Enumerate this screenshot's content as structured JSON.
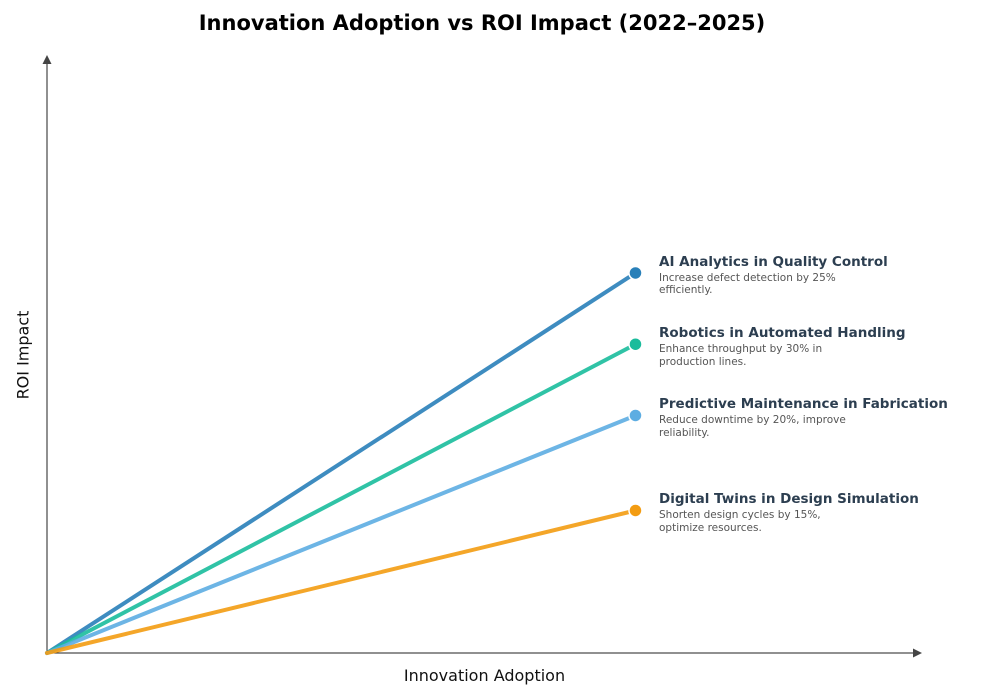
{
  "chart_data": {
    "type": "line",
    "title": "Innovation Adoption vs ROI Impact (2022–2025)",
    "xlabel": "Innovation Adoption",
    "ylabel": "ROI Impact",
    "xlim": [
      0,
      10.2
    ],
    "ylim": [
      0,
      10
    ],
    "grid": false,
    "ticks": false,
    "series": [
      {
        "name": "AI Analytics in Quality Control",
        "description": "Increase defect detection by 25% efficiently.",
        "color": "#2980b9",
        "points": [
          [
            0,
            0
          ],
          [
            7,
            8
          ]
        ]
      },
      {
        "name": "Robotics in Automated Handling",
        "description": "Enhance throughput by 30% in production lines.",
        "color": "#1abc9c",
        "points": [
          [
            0,
            0
          ],
          [
            7,
            6.5
          ]
        ]
      },
      {
        "name": "Predictive Maintenance in Fabrication",
        "description": "Reduce downtime by 20%, improve reliability.",
        "color": "#5dade2",
        "points": [
          [
            0,
            0
          ],
          [
            7,
            5
          ]
        ]
      },
      {
        "name": "Digital Twins in Design Simulation",
        "description": "Shorten design cycles by 15%, optimize resources.",
        "color": "#f39c12",
        "points": [
          [
            0,
            0
          ],
          [
            7,
            3
          ]
        ]
      }
    ]
  }
}
